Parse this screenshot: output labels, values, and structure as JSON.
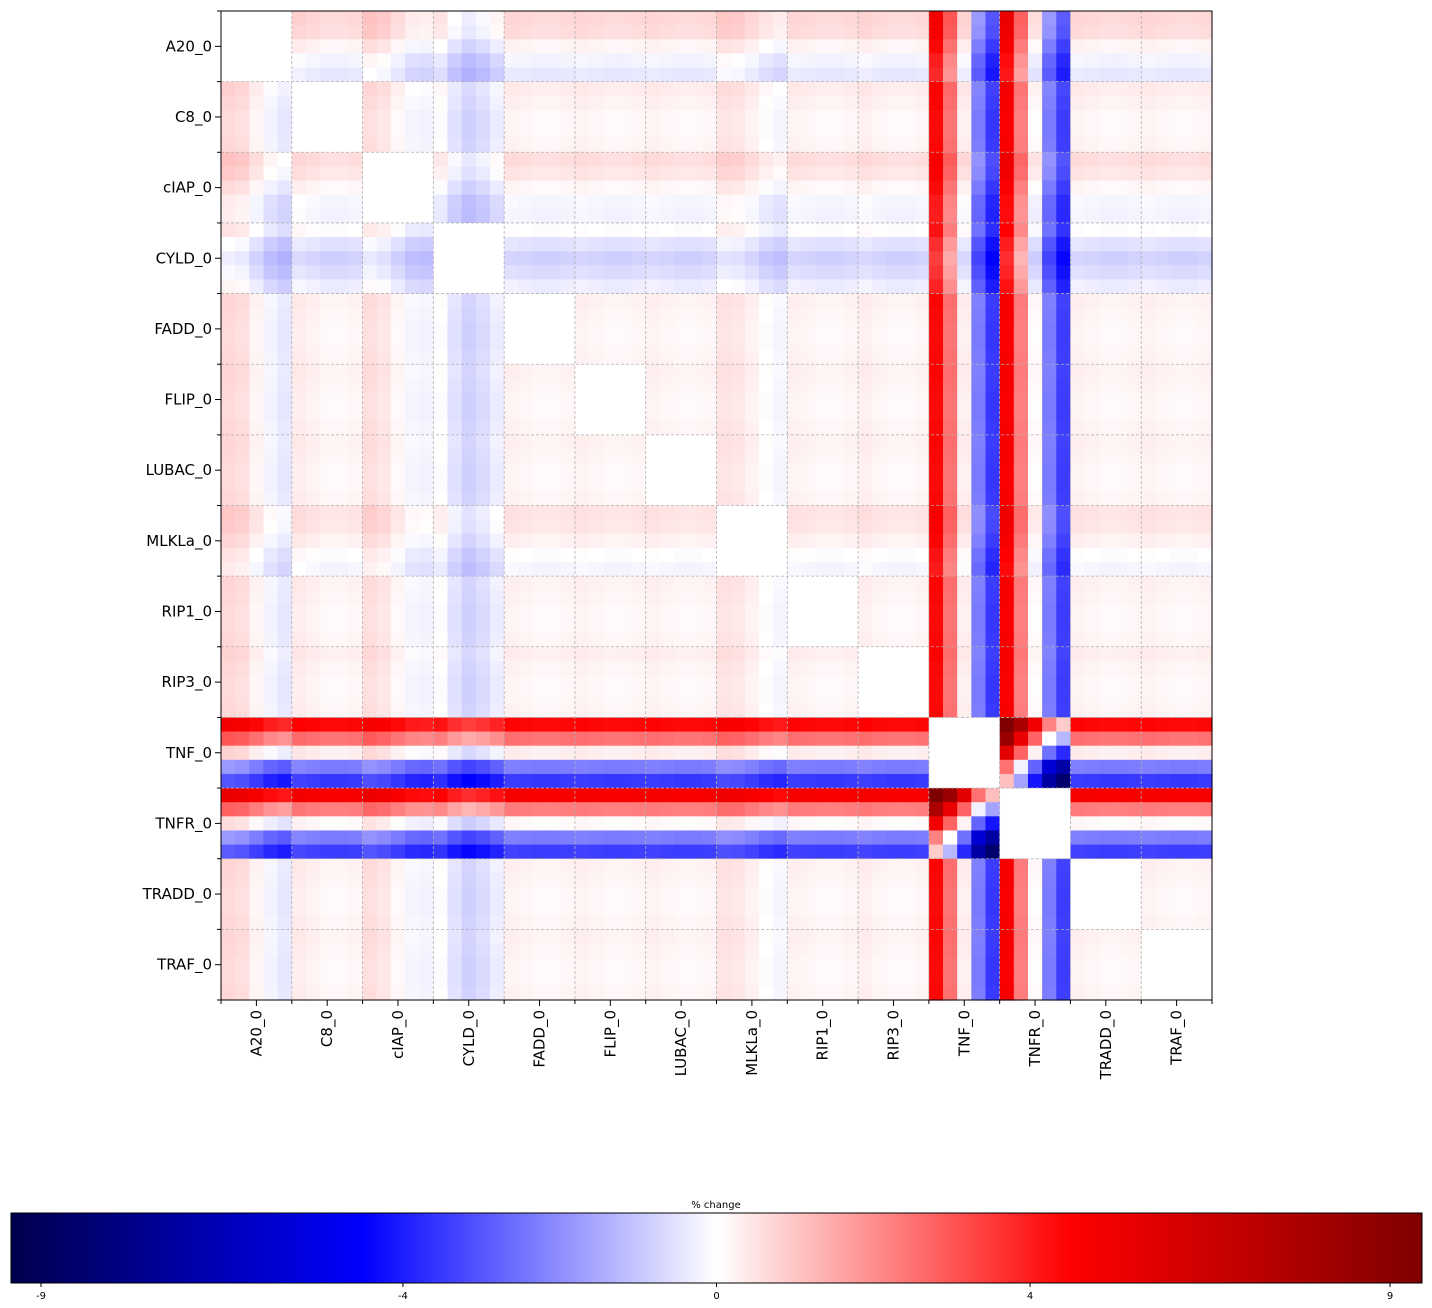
{
  "chart_data": {
    "type": "heatmap",
    "variables": [
      "A20_0",
      "C8_0",
      "cIAP_0",
      "CYLD_0",
      "FADD_0",
      "FLIP_0",
      "LUBAC_0",
      "MLKLa_0",
      "RIP1_0",
      "RIP3_0",
      "TNF_0",
      "TNFR_0",
      "TRADD_0",
      "TRAF_0"
    ],
    "x_tick_labels": [
      "A20_0",
      "C8_0",
      "cIAP_0",
      "CYLD_0",
      "FADD_0",
      "FLIP_0",
      "LUBAC_0",
      "MLKLa_0",
      "RIP1_0",
      "RIP3_0",
      "TNF_0",
      "TNFR_0",
      "TRADD_0",
      "TRAF_0"
    ],
    "y_tick_labels": [
      "A20_0",
      "C8_0",
      "cIAP_0",
      "CYLD_0",
      "FADD_0",
      "FLIP_0",
      "LUBAC_0",
      "MLKLa_0",
      "RIP1_0",
      "RIP3_0",
      "TNF_0",
      "TNFR_0",
      "TRADD_0",
      "TRAF_0"
    ],
    "sub_bins_per_variable": 5,
    "cell_profile_note": "% change for the sub-bin pair (i,j)",
    "profiles": {
      "A20_0": [
        0.6,
        0.5,
        0.1,
        -0.3,
        -0.5
      ],
      "C8_0": [
        0.25,
        0.15,
        0.05,
        0.05,
        0.1
      ],
      "cIAP_0": [
        0.5,
        0.35,
        0.05,
        -0.25,
        -0.3
      ],
      "CYLD_0": [
        -0.1,
        -0.6,
        -0.9,
        -0.7,
        -0.4
      ],
      "FADD_0": [
        0.15,
        0.1,
        0.05,
        0.05,
        0.1
      ],
      "FLIP_0": [
        0.15,
        0.1,
        0.05,
        0.05,
        0.1
      ],
      "LUBAC_0": [
        0.15,
        0.1,
        0.05,
        0.05,
        0.1
      ],
      "MLKLa_0": [
        0.4,
        0.35,
        0.15,
        -0.1,
        -0.25
      ],
      "RIP1_0": [
        0.15,
        0.1,
        0.05,
        0.05,
        0.1
      ],
      "RIP3_0": [
        0.2,
        0.1,
        0.05,
        0.05,
        0.1
      ],
      "TNF_0": [
        4.3,
        2.4,
        0.2,
        -2.4,
        -3.6
      ],
      "TNFR_0": [
        4.6,
        2.2,
        0.0,
        -2.4,
        -3.5
      ],
      "TRADD_0": [
        0.15,
        0.1,
        0.05,
        0.05,
        0.1
      ],
      "TRAF_0": [
        0.15,
        0.1,
        0.05,
        0.05,
        0.1
      ]
    },
    "diagonal_blocks": "0 (white)",
    "colorbar": {
      "label": "% change",
      "colormap": "seismic",
      "range": [
        -9,
        9
      ],
      "ticks": [
        -9,
        -4,
        0,
        4,
        9
      ]
    },
    "grid": true
  }
}
